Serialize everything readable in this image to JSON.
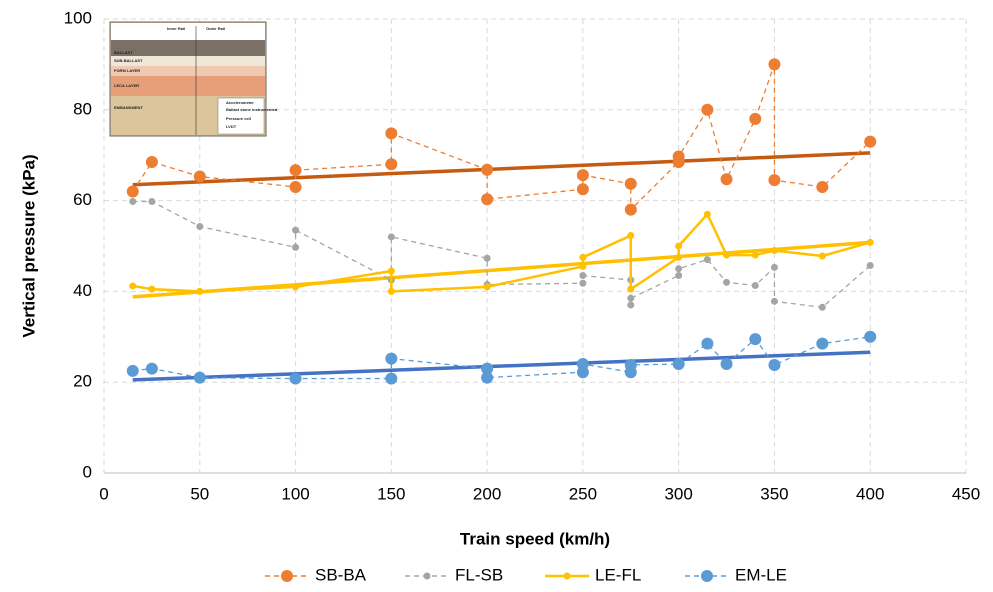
{
  "chart_data": {
    "type": "line",
    "x_label": "Train speed (km/h)",
    "y_label": "Vertical pressure (kPa)",
    "xlim": [
      0,
      450
    ],
    "xticks": [
      0,
      50,
      100,
      150,
      200,
      250,
      300,
      350,
      400,
      450
    ],
    "ylim": [
      0,
      100
    ],
    "yticks": [
      0,
      20,
      40,
      60,
      80,
      100
    ],
    "grid": true,
    "legend": "bottom",
    "series": [
      {
        "name": "SB-BA",
        "color": "#ed7d31",
        "dashed": true,
        "marker": 6,
        "x": [
          15,
          25,
          50,
          100,
          100,
          150,
          150,
          200,
          200,
          250,
          250,
          275,
          275,
          300,
          300,
          315,
          325,
          340,
          350,
          350,
          375,
          400
        ],
        "values": [
          62,
          68.5,
          65.3,
          63,
          66.7,
          68,
          74.8,
          66.8,
          60.3,
          62.5,
          65.6,
          63.7,
          58,
          68.5,
          69.7,
          80,
          64.7,
          78,
          90,
          64.5,
          63,
          73
        ]
      },
      {
        "name": "FL-SB",
        "color": "#a5a5a5",
        "dashed": true,
        "marker": 3.5,
        "x": [
          15,
          25,
          50,
          100,
          100,
          150,
          150,
          200,
          200,
          250,
          250,
          275,
          275,
          275,
          300,
          300,
          315,
          325,
          340,
          350,
          350,
          375,
          400
        ],
        "values": [
          59.8,
          59.8,
          54.3,
          49.7,
          53.5,
          42.5,
          52,
          47.3,
          41.5,
          41.8,
          43.5,
          42.5,
          37,
          38.5,
          43.5,
          45,
          47,
          42,
          41.3,
          45.3,
          37.8,
          36.5,
          45.7
        ]
      },
      {
        "name": "LE-FL",
        "color": "#ffc000",
        "dashed": false,
        "marker": 3.5,
        "x": [
          15,
          25,
          50,
          100,
          150,
          150,
          200,
          250,
          250,
          275,
          275,
          300,
          300,
          315,
          325,
          340,
          350,
          375,
          400
        ],
        "values": [
          41.2,
          40.5,
          40,
          41,
          44.5,
          40,
          41,
          45.5,
          47.5,
          52.3,
          40.5,
          47.5,
          50,
          57,
          48,
          48,
          49,
          47.8,
          50.8
        ]
      },
      {
        "name": "EM-LE",
        "color": "#5b9bd5",
        "dashed": true,
        "marker": 6,
        "x": [
          15,
          25,
          50,
          100,
          150,
          150,
          200,
          200,
          250,
          250,
          275,
          275,
          300,
          315,
          325,
          340,
          350,
          375,
          400
        ],
        "values": [
          22.5,
          23,
          21,
          20.8,
          20.8,
          25.2,
          23,
          21,
          22.2,
          24,
          22.2,
          23.8,
          24,
          28.5,
          24,
          29.5,
          23.8,
          28.5,
          30
        ]
      }
    ],
    "trendlines": [
      {
        "color": "#c55a11",
        "x": [
          15,
          400
        ],
        "values": [
          63.5,
          70.5
        ]
      },
      {
        "color": "#ffc000",
        "x": [
          15,
          400
        ],
        "values": [
          38.8,
          50.8
        ]
      },
      {
        "color": "#4472c4",
        "x": [
          15,
          400
        ],
        "values": [
          20.5,
          26.6
        ]
      }
    ],
    "inset": {
      "labels": [
        "Inner Rail",
        "Outer Rail",
        "BALLAST",
        "SUB-BALLAST",
        "FORM LAYER",
        "LECA LAYER",
        "EMBANKMENT",
        "Accelerometer",
        "Ballast stone instrumented",
        "Pressure cell",
        "LVDT"
      ]
    }
  }
}
